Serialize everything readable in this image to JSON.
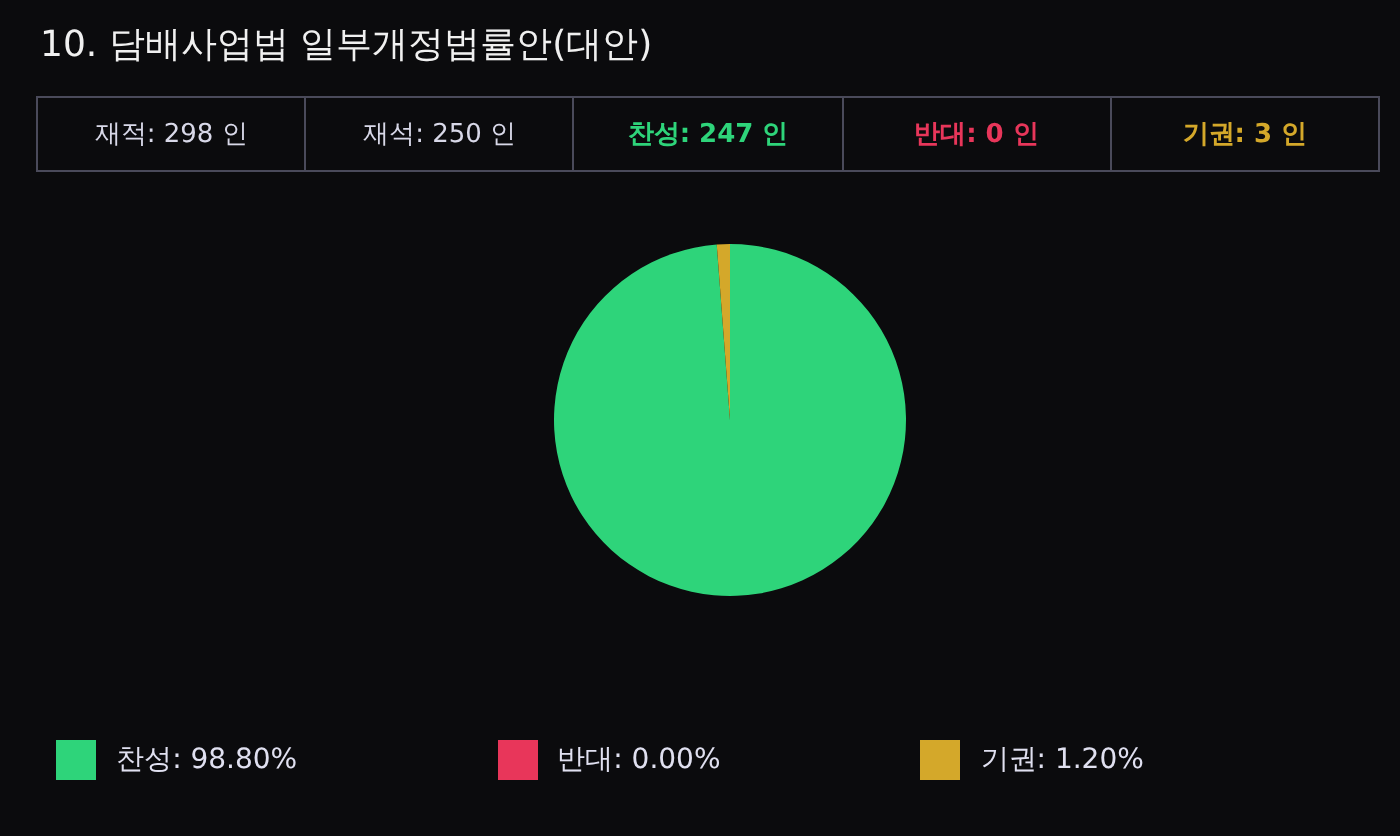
{
  "chart_data": {
    "type": "pie",
    "title": "10. 담배사업법 일부개정법률안(대안)",
    "annotations": [
      "재적: 298 인",
      "재석: 250 인",
      "찬성: 247 인",
      "반대: 0 인",
      "기권: 3 인"
    ],
    "categories": [
      "찬성: 98.80%",
      "반대: 0.00%",
      "기권: 1.20%"
    ],
    "values": [
      98.8,
      0,
      1.2
    ],
    "colors": [
      "#2ed47a",
      "#e8365a",
      "#d4a82a"
    ],
    "legend": "bottom"
  }
}
